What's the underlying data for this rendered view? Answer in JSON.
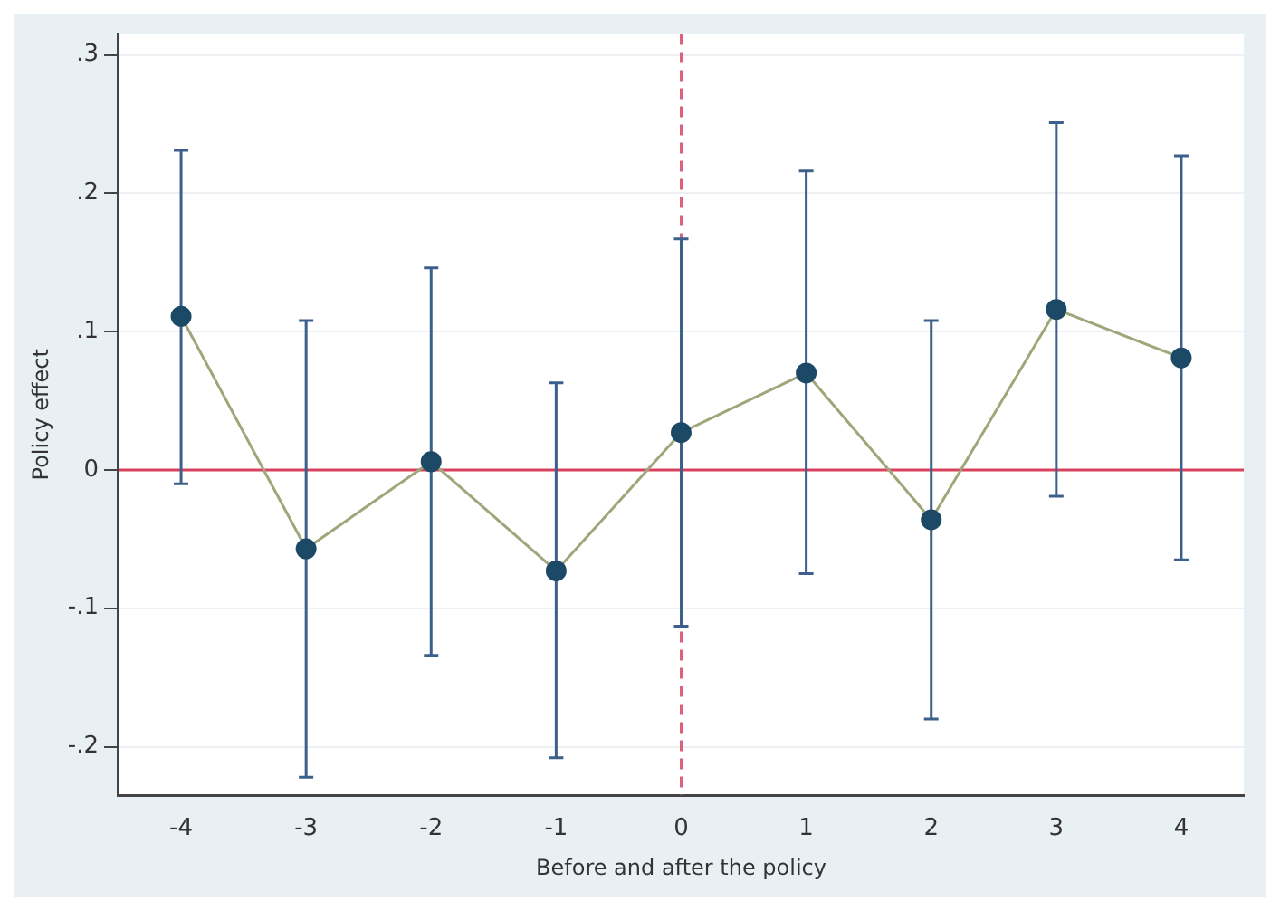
{
  "chart_data": {
    "type": "line",
    "xlabel": "Before and after the policy",
    "ylabel": "Policy effect",
    "x": [
      -4,
      -3,
      -2,
      -1,
      0,
      1,
      2,
      3,
      4
    ],
    "series": [
      {
        "color": "#1c4966",
        "values": [
          0.111,
          -0.057,
          0.006,
          -0.073,
          0.027,
          0.07,
          -0.036,
          0.116,
          0.081
        ],
        "errors": [
          [
            -0.01,
            0.231
          ],
          [
            -0.222,
            0.108
          ],
          [
            -0.134,
            0.146
          ],
          [
            -0.208,
            0.063
          ],
          [
            -0.113,
            0.167
          ],
          [
            -0.075,
            0.216
          ],
          [
            -0.18,
            0.108
          ],
          [
            -0.019,
            0.251
          ],
          [
            -0.065,
            0.227
          ]
        ]
      }
    ],
    "xlim": [
      -4.5,
      4.5
    ],
    "xticks": [
      -4,
      -3,
      -2,
      -1,
      0,
      1,
      2,
      3,
      4
    ],
    "ylim": [
      -0.235,
      0.315
    ],
    "yticks": [
      {
        "value": -0.2,
        "label": "-.2"
      },
      {
        "value": -0.1,
        "label": "-.1"
      },
      {
        "value": 0,
        "label": "0"
      },
      {
        "value": 0.1,
        "label": ".1"
      },
      {
        "value": 0.2,
        "label": ".2"
      },
      {
        "value": 0.3,
        "label": ".3"
      }
    ],
    "ref_lines": [
      {
        "axis": "y",
        "value": 0,
        "color": "#d9425e",
        "line_style": "solid"
      },
      {
        "axis": "x",
        "value": 0,
        "color": "#e0607a",
        "line_style": "dashed"
      }
    ],
    "grid": "y",
    "marker": "circle",
    "line_style": "solid",
    "legend": false
  }
}
